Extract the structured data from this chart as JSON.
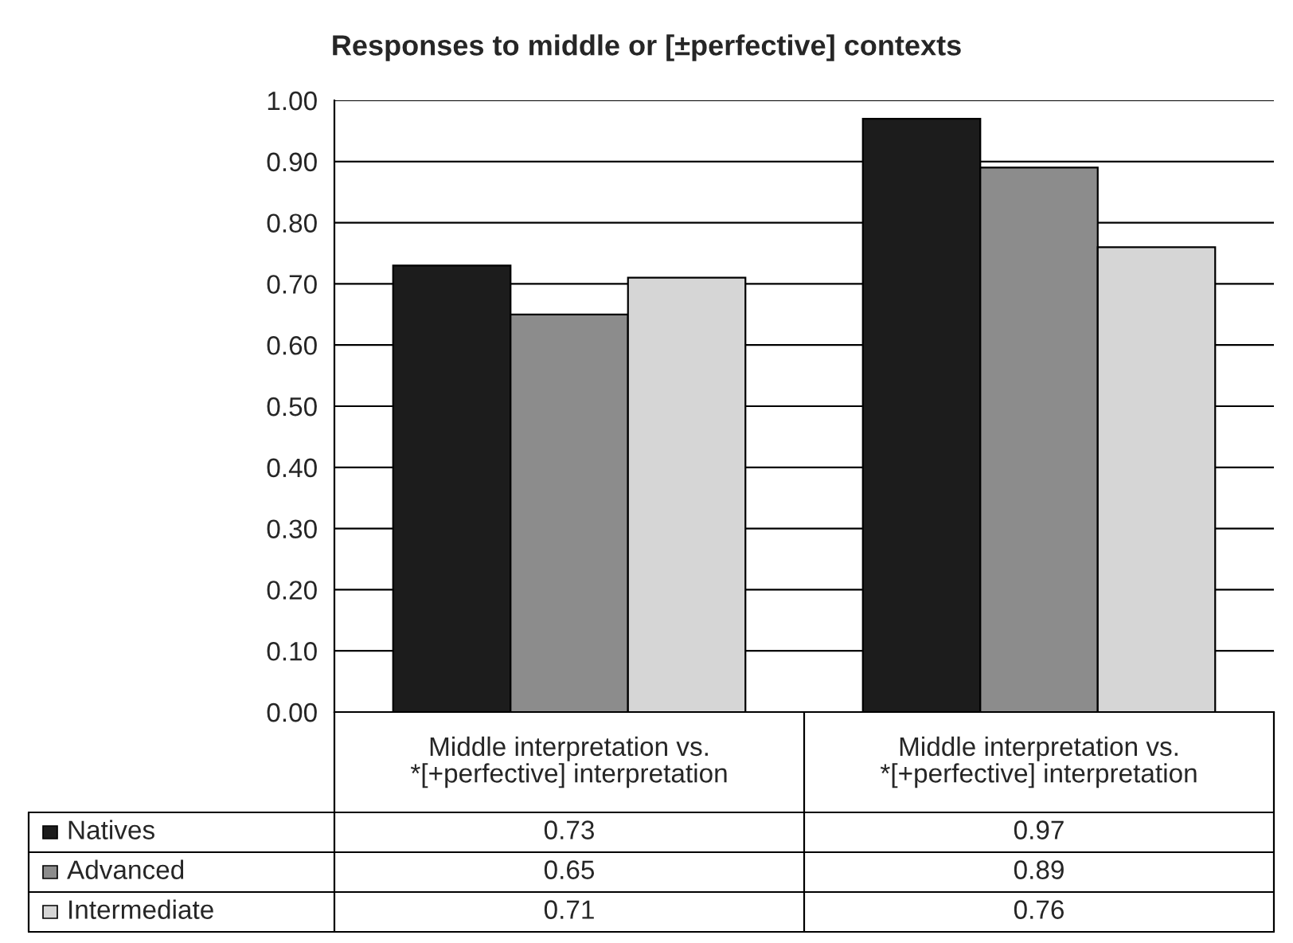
{
  "chart_data": {
    "type": "bar",
    "title": "Responses to middle or [±perfective] contexts",
    "categories": [
      "Middle interpretation vs.\n*[+perfective] interpretation",
      "Middle interpretation vs.\n*[+perfective] interpretation"
    ],
    "series": [
      {
        "name": "Natives",
        "color": "#1c1c1c",
        "values": [
          0.73,
          0.97
        ]
      },
      {
        "name": "Advanced",
        "color": "#8c8c8c",
        "values": [
          0.65,
          0.89
        ]
      },
      {
        "name": "Intermediate",
        "color": "#d6d6d6",
        "values": [
          0.71,
          0.76
        ]
      }
    ],
    "ylim": [
      0,
      1
    ],
    "yticks": [
      {
        "value": 0,
        "label": "0.00"
      },
      {
        "value": 0.1,
        "label": "0.10"
      },
      {
        "value": 0.2,
        "label": "0.20"
      },
      {
        "value": 0.3,
        "label": "0.30"
      },
      {
        "value": 0.4,
        "label": "0.40"
      },
      {
        "value": 0.5,
        "label": "0.50"
      },
      {
        "value": 0.6,
        "label": "0.60"
      },
      {
        "value": 0.7,
        "label": "0.70"
      },
      {
        "value": 0.8,
        "label": "0.80"
      },
      {
        "value": 0.9,
        "label": "0.90"
      },
      {
        "value": 1,
        "label": "1.00"
      }
    ],
    "grid": "y",
    "legend": "bottom",
    "data_labels": true
  }
}
